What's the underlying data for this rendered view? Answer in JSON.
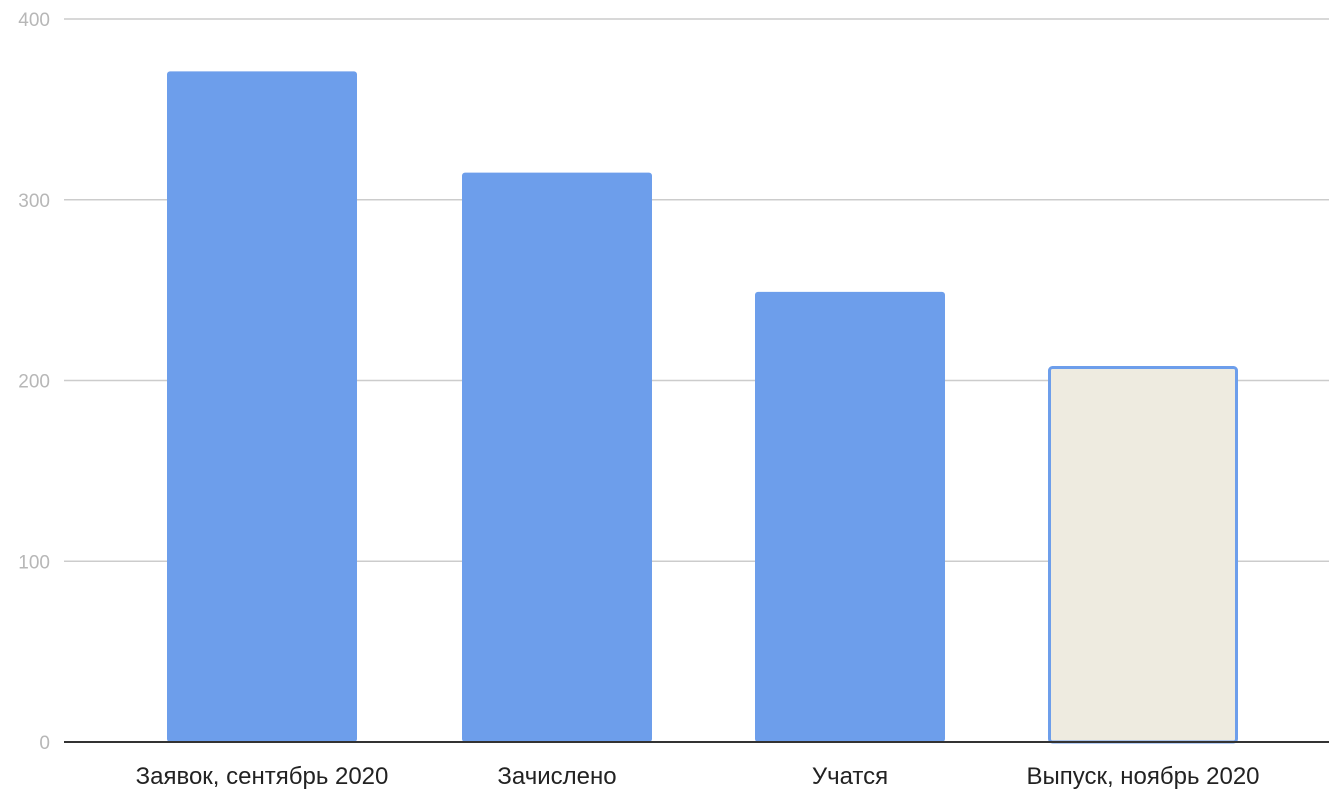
{
  "chart_data": {
    "type": "bar",
    "title": "",
    "xlabel": "",
    "ylabel": "",
    "categories": [
      "Заявок, сентябрь 2020",
      "Зачислено",
      "Учатся",
      "Выпуск, ноябрь 2020"
    ],
    "values": [
      371,
      315,
      249,
      208
    ],
    "ylim": [
      0,
      400
    ],
    "yticks": [
      "0",
      "100",
      "200",
      "300",
      "400"
    ],
    "grid": true,
    "legend": "none",
    "colors": {
      "bar": "#6d9eeb",
      "highlight_fill": "#eeebe0",
      "highlight_border": "#6d9eeb",
      "grid": "#cccccc",
      "baseline": "#333333",
      "tick_label": "#b7b7b7",
      "category_label": "#222222"
    },
    "highlighted_bar_index": 3
  }
}
